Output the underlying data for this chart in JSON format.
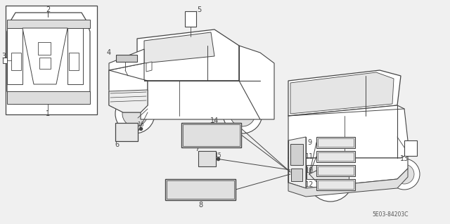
{
  "bg_color": "#f0f0f0",
  "line_color": "#444444",
  "part_code": "5E03-84203C",
  "fig_w": 6.4,
  "fig_h": 3.19,
  "dpi": 100
}
